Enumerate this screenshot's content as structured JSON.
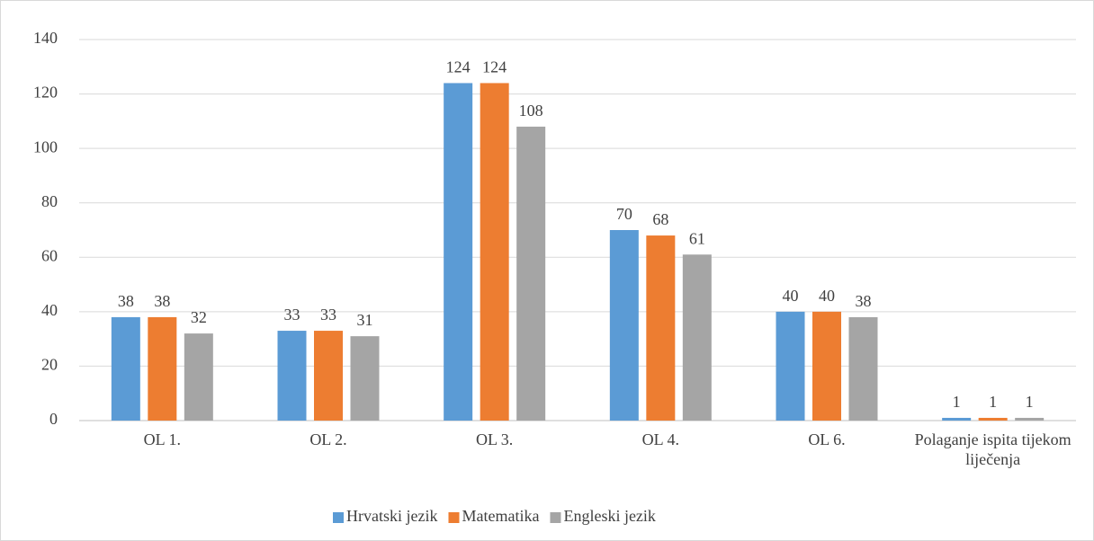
{
  "chart_data": {
    "type": "bar",
    "categories": [
      "OL 1.",
      "OL 2.",
      "OL 3.",
      "OL 4.",
      "OL 6.",
      "Polaganje ispita tijekom liječenja"
    ],
    "series": [
      {
        "name": "Hrvatski jezik",
        "color": "#5b9bd5",
        "values": [
          38,
          33,
          124,
          70,
          40,
          1
        ]
      },
      {
        "name": "Matematika",
        "color": "#ed7d31",
        "values": [
          38,
          33,
          124,
          68,
          40,
          1
        ]
      },
      {
        "name": "Engleski jezik",
        "color": "#a5a5a5",
        "values": [
          32,
          31,
          108,
          61,
          38,
          1
        ]
      }
    ],
    "ylim": [
      0,
      140
    ],
    "yticks": [
      0,
      20,
      40,
      60,
      80,
      100,
      120,
      140
    ],
    "grid": true,
    "legend": "bottom"
  }
}
